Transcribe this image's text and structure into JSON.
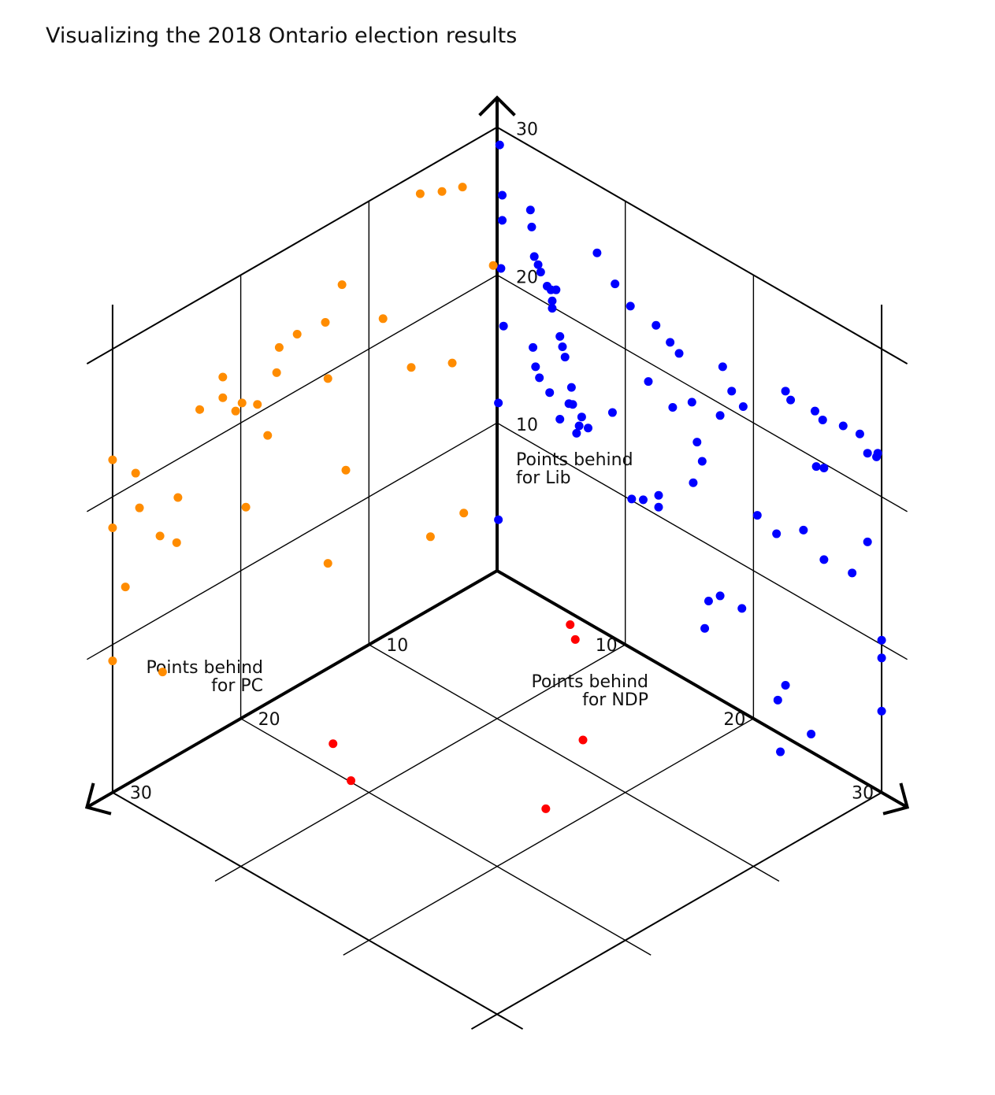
{
  "chart_data": {
    "type": "scatter",
    "title": "Visualizing the 2018 Ontario election results",
    "axes": {
      "pc": {
        "label_lines": [
          "Points behind",
          "for PC"
        ],
        "range": [
          0,
          30
        ],
        "ticks": [
          10,
          20,
          30
        ]
      },
      "ndp": {
        "label_lines": [
          "Points behind",
          "for NDP"
        ],
        "range": [
          0,
          30
        ],
        "ticks": [
          10,
          20,
          30
        ]
      },
      "lib": {
        "label_lines": [
          "Points behind",
          "for Lib"
        ],
        "range": [
          0,
          30
        ],
        "ticks": [
          10,
          20,
          30
        ]
      }
    },
    "grid": true,
    "series": [
      {
        "color": "#0000ff",
        "note_plane": "NDP vs Lib",
        "points": [
          [
            0.2,
            28.9
          ],
          [
            0.4,
            25.6
          ],
          [
            0.4,
            23.9
          ],
          [
            0.3,
            20.6
          ],
          [
            0.5,
            16.8
          ],
          [
            0.1,
            11.4
          ],
          [
            0.1,
            3.5
          ],
          [
            2.6,
            25.7
          ],
          [
            2.7,
            24.6
          ],
          [
            2.9,
            22.7
          ],
          [
            3.2,
            22.3
          ],
          [
            3.4,
            21.9
          ],
          [
            3.9,
            21.2
          ],
          [
            4.2,
            21.1
          ],
          [
            4.3,
            20.4
          ],
          [
            3.0,
            15.3
          ],
          [
            4.6,
            21.3
          ],
          [
            4.3,
            19.9
          ],
          [
            4.9,
            18.3
          ],
          [
            5.1,
            17.7
          ],
          [
            5.3,
            17.1
          ],
          [
            5.8,
            15.3
          ],
          [
            5.9,
            14.2
          ],
          [
            6.4,
            13.0
          ],
          [
            6.2,
            12.4
          ],
          [
            7.8,
            25.4
          ],
          [
            9.2,
            24.0
          ],
          [
            10.4,
            23.1
          ],
          [
            12.4,
            22.8
          ],
          [
            13.5,
            22.2
          ],
          [
            14.2,
            21.8
          ],
          [
            17.6,
            22.6
          ],
          [
            18.3,
            21.3
          ],
          [
            15.2,
            19.0
          ],
          [
            17.4,
            19.2
          ],
          [
            19.2,
            20.7
          ],
          [
            22.5,
            23.4
          ],
          [
            22.9,
            23.0
          ],
          [
            24.8,
            23.2
          ],
          [
            25.4,
            22.9
          ],
          [
            27.0,
            23.3
          ],
          [
            28.3,
            23.4
          ],
          [
            28.9,
            22.4
          ],
          [
            2.8,
            16.5
          ],
          [
            3.3,
            14.7
          ],
          [
            4.1,
            14.1
          ],
          [
            5.6,
            14.1
          ],
          [
            6.6,
            13.7
          ],
          [
            4.9,
            12.7
          ],
          [
            7.1,
            13.2
          ],
          [
            9.0,
            15.2
          ],
          [
            11.8,
            18.7
          ],
          [
            13.7,
            17.9
          ],
          [
            15.6,
            16.5
          ],
          [
            16.0,
            15.4
          ],
          [
            10.5,
            10.1
          ],
          [
            11.4,
            10.5
          ],
          [
            12.6,
            11.4
          ],
          [
            12.6,
            10.6
          ],
          [
            15.3,
            13.6
          ],
          [
            20.3,
            13.9
          ],
          [
            21.8,
            13.4
          ],
          [
            23.9,
            14.7
          ],
          [
            25.5,
            13.5
          ],
          [
            27.7,
            13.7
          ],
          [
            25.5,
            19.7
          ],
          [
            24.9,
            19.5
          ],
          [
            28.9,
            16.4
          ],
          [
            30.0,
            10.3
          ],
          [
            30.0,
            9.1
          ],
          [
            30.0,
            5.5
          ],
          [
            17.4,
            7.0
          ],
          [
            16.5,
            6.2
          ],
          [
            19.1,
            7.0
          ],
          [
            16.2,
            4.2
          ],
          [
            22.5,
            3.5
          ],
          [
            21.9,
            2.2
          ],
          [
            24.5,
            1.2
          ],
          [
            22.1,
            -1.2
          ],
          [
            29.7,
            22.8
          ],
          [
            29.6,
            22.5
          ]
        ]
      },
      {
        "color": "#ff8c00",
        "note_plane": "PC vs Lib",
        "points": [
          [
            30,
            22.5
          ],
          [
            30,
            17.9
          ],
          [
            30,
            8.9
          ],
          [
            28.2,
            20.7
          ],
          [
            27.9,
            18.2
          ],
          [
            24.9,
            17.4
          ],
          [
            26.3,
            15.5
          ],
          [
            29,
            13.4
          ],
          [
            26.1,
            6.2
          ],
          [
            25.0,
            14.4
          ],
          [
            19.6,
            14.1
          ],
          [
            11.8,
            12.7
          ],
          [
            3.5,
            15.8
          ],
          [
            8.9,
            21.5
          ],
          [
            13.2,
            19.6
          ],
          [
            6.7,
            17.1
          ],
          [
            5.2,
            4.9
          ],
          [
            2.6,
            5.2
          ],
          [
            23.2,
            22.5
          ],
          [
            21.4,
            22.4
          ],
          [
            19.9,
            21.3
          ],
          [
            20.4,
            21.0
          ],
          [
            17.2,
            22.0
          ],
          [
            21.4,
            23.8
          ],
          [
            17.0,
            23.6
          ],
          [
            15.6,
            23.8
          ],
          [
            13.4,
            23.5
          ],
          [
            12.1,
            25.4
          ],
          [
            6.0,
            28.5
          ],
          [
            4.3,
            27.8
          ],
          [
            2.7,
            27.3
          ],
          [
            13.2,
            7.1
          ],
          [
            17.9,
            18.1
          ],
          [
            18.7,
            20.6
          ],
          [
            0.3,
            20.8
          ]
        ]
      },
      {
        "color": "#ff0000",
        "note_plane": "PC vs NDP",
        "points": [
          [
            -1.0,
            6.5
          ],
          [
            -1.5,
            8.6
          ],
          [
            -8.6,
            9.1
          ],
          [
            -6.5,
            22.5
          ],
          [
            -12.5,
            20.8
          ],
          [
            -13.9,
            15.6
          ]
        ]
      }
    ]
  }
}
